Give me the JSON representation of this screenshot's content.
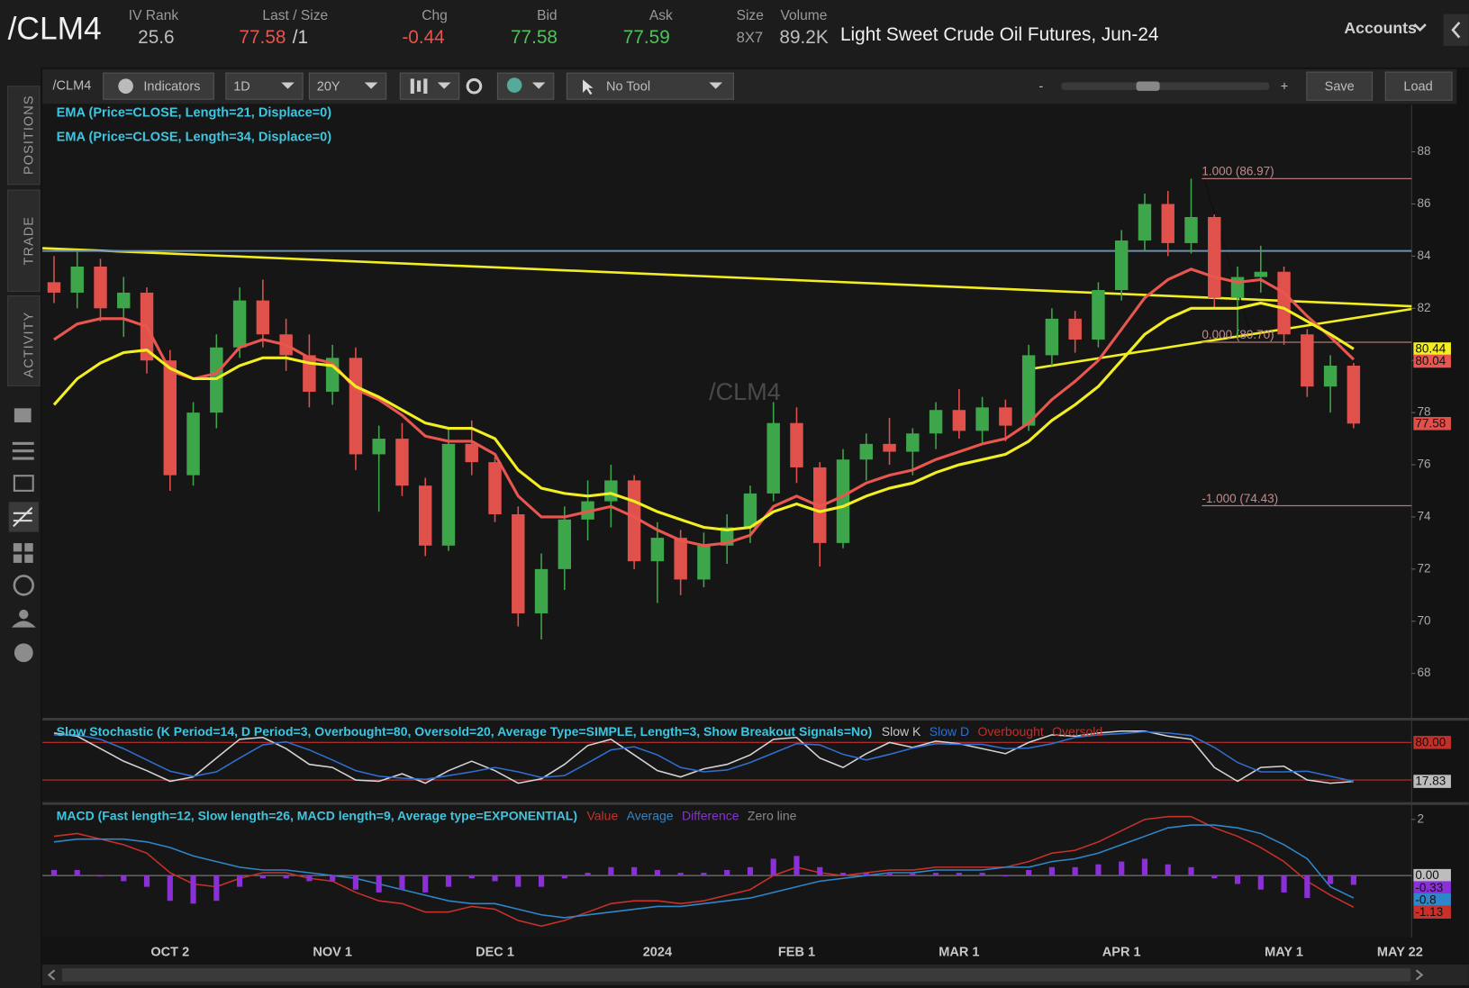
{
  "header": {
    "symbol": "/CLM4",
    "fields": [
      {
        "label": "IV Rank",
        "value": "25.6"
      },
      {
        "label": "Last / Size",
        "value": "77.58",
        "size": "/1"
      },
      {
        "label": "Chg",
        "value": "-0.44"
      },
      {
        "label": "Bid",
        "value": "77.58"
      },
      {
        "label": "Ask",
        "value": "77.59"
      },
      {
        "label": "Size",
        "value": "8X7"
      },
      {
        "label": "Volume",
        "value": "89.2K"
      }
    ],
    "description": "Light Sweet Crude Oil Futures, Jun-24",
    "accounts": "Accounts"
  },
  "toolbar": {
    "symbol": "/CLM4",
    "indicators": "Indicators",
    "period": "1D",
    "range": "20Y",
    "tool": "No Tool",
    "zoom_out": "-",
    "zoom_in": "+",
    "save": "Save",
    "load": "Load"
  },
  "sidebar": {
    "tabs": [
      "POSITIONS",
      "TRADE",
      "ACTIVITY"
    ]
  },
  "chart_data": [
    {
      "type": "candlestick",
      "watermark": "/CLM4",
      "categories": [
        null,
        null,
        null,
        null,
        null,
        "OCT 2",
        null,
        null,
        null,
        null,
        null,
        null,
        "NOV 1",
        null,
        null,
        null,
        null,
        null,
        null,
        "DEC 1",
        null,
        null,
        null,
        null,
        null,
        null,
        "2024",
        null,
        null,
        null,
        null,
        null,
        "FEB 1",
        null,
        null,
        null,
        null,
        null,
        null,
        "MAR 1",
        null,
        null,
        null,
        null,
        null,
        null,
        "APR 1",
        null,
        null,
        null,
        null,
        null,
        null,
        "MAY 1",
        null,
        null,
        null,
        null,
        "MAY 22"
      ],
      "open": [
        83.0,
        82.6,
        83.6,
        82.0,
        82.6,
        80.0,
        75.6,
        78.0,
        80.5,
        82.3,
        81.0,
        80.2,
        78.8,
        80.1,
        76.4,
        77.0,
        75.2,
        72.9,
        76.8,
        76.1,
        74.1,
        70.3,
        72.0,
        73.9,
        74.6,
        75.4,
        72.3,
        73.2,
        71.6,
        72.9,
        73.6,
        74.9,
        77.6,
        75.9,
        73.0,
        76.2,
        76.8,
        76.5,
        77.2,
        78.1,
        77.3,
        78.2,
        77.5,
        80.2,
        81.6,
        80.8,
        82.7,
        84.6,
        86.0,
        84.5,
        85.5,
        82.4,
        83.2,
        83.4,
        81.0,
        79.0,
        79.8,
        null,
        null
      ],
      "high": [
        84.0,
        84.2,
        83.9,
        83.2,
        82.8,
        80.4,
        78.4,
        81.0,
        82.8,
        83.1,
        81.6,
        81.0,
        80.6,
        80.5,
        77.5,
        77.6,
        75.5,
        77.4,
        77.7,
        76.3,
        74.4,
        72.6,
        74.4,
        75.4,
        76.0,
        75.6,
        73.8,
        73.5,
        73.4,
        74.1,
        75.2,
        78.4,
        78.2,
        76.1,
        76.6,
        77.2,
        77.8,
        77.4,
        78.4,
        78.9,
        78.6,
        78.5,
        80.6,
        82.0,
        81.9,
        83.0,
        85.0,
        86.4,
        86.5,
        86.97,
        85.6,
        83.6,
        84.4,
        83.6,
        81.2,
        80.2,
        79.9,
        null,
        null
      ],
      "low": [
        82.2,
        82.0,
        81.5,
        80.9,
        79.5,
        75.0,
        75.2,
        77.4,
        80.1,
        80.5,
        79.6,
        78.2,
        78.3,
        75.8,
        74.2,
        74.8,
        72.5,
        72.7,
        75.6,
        73.8,
        69.8,
        69.3,
        71.2,
        73.1,
        73.6,
        72.0,
        70.7,
        71.0,
        71.3,
        72.2,
        73.0,
        74.6,
        75.3,
        72.1,
        72.8,
        75.4,
        76.0,
        75.6,
        76.6,
        77.0,
        76.8,
        76.9,
        77.3,
        79.8,
        80.3,
        80.5,
        82.3,
        84.2,
        84.0,
        84.1,
        82.0,
        80.9,
        82.6,
        80.6,
        78.6,
        78.0,
        77.4,
        null,
        null
      ],
      "close": [
        82.6,
        83.6,
        82.0,
        82.6,
        80.0,
        75.6,
        78.0,
        80.5,
        82.3,
        81.0,
        80.2,
        78.8,
        80.1,
        76.4,
        77.0,
        75.2,
        72.9,
        76.8,
        76.1,
        74.1,
        70.3,
        72.0,
        73.9,
        74.6,
        75.4,
        72.3,
        73.2,
        71.6,
        72.9,
        73.6,
        74.9,
        77.6,
        75.9,
        73.0,
        76.2,
        76.8,
        76.5,
        77.2,
        78.1,
        77.3,
        78.2,
        77.5,
        80.2,
        81.6,
        80.8,
        82.7,
        84.6,
        86.0,
        84.5,
        85.5,
        82.4,
        83.2,
        83.4,
        81.0,
        79.0,
        79.8,
        77.58,
        null,
        null
      ],
      "up_color": "#3da64a",
      "down_color": "#e0514b",
      "series": [
        {
          "name": "EMA (Price=CLOSE, Length=21, Displace=0)",
          "color": "#e8564f",
          "show_last": true,
          "values": [
            80.8,
            81.4,
            81.6,
            81.6,
            81.3,
            79.6,
            79.3,
            79.5,
            80.5,
            80.8,
            80.6,
            80.1,
            79.9,
            78.9,
            78.5,
            77.9,
            77.1,
            76.9,
            76.9,
            76.4,
            74.8,
            74.0,
            74.0,
            74.2,
            74.4,
            74.0,
            73.5,
            73.1,
            72.9,
            73.0,
            73.3,
            74.4,
            74.8,
            74.4,
            74.8,
            75.3,
            75.6,
            75.8,
            76.2,
            76.5,
            76.8,
            77.0,
            77.6,
            78.5,
            79.2,
            80.0,
            81.2,
            82.4,
            83.1,
            83.5,
            83.2,
            83.0,
            83.1,
            82.6,
            81.7,
            80.9,
            80.04,
            null,
            null
          ]
        },
        {
          "name": "EMA (Price=CLOSE, Length=34, Displace=0)",
          "color": "#f2ee22",
          "show_last": true,
          "values": [
            78.3,
            79.3,
            79.9,
            80.3,
            80.4,
            79.7,
            79.3,
            79.3,
            79.8,
            80.1,
            80.1,
            79.9,
            79.8,
            79.0,
            78.6,
            78.1,
            77.6,
            77.4,
            77.4,
            77.0,
            75.8,
            75.1,
            74.9,
            74.8,
            74.9,
            74.6,
            74.2,
            73.9,
            73.6,
            73.5,
            73.6,
            74.2,
            74.5,
            74.2,
            74.4,
            74.8,
            75.1,
            75.3,
            75.7,
            76.0,
            76.2,
            76.4,
            76.9,
            77.7,
            78.3,
            79.0,
            80.0,
            81.0,
            81.6,
            82.0,
            82.0,
            82.0,
            82.2,
            82.0,
            81.5,
            81.0,
            80.44,
            null,
            null
          ]
        }
      ],
      "ylim": [
        66.35,
        89.8
      ],
      "yticks": [
        68,
        70,
        72,
        74,
        76,
        78,
        80,
        82,
        84,
        86,
        88
      ],
      "fib_levels": [
        {
          "value": 86.97,
          "label": "1.000 (86.97)"
        },
        {
          "value": 80.7,
          "label": "0.000 (80.70)"
        },
        {
          "value": 74.43,
          "label": "-1.000 (74.43)"
        }
      ],
      "hlines": [
        {
          "value": 84.2,
          "color": "#6f8faa"
        }
      ]
    },
    {
      "type": "line",
      "title": "Slow Stochastic (K Period=14, D Period=3, Overbought=80, Oversold=20, Average Type=SIMPLE, Length=3, Show Breakout Signals=No)",
      "series": [
        {
          "name": "Slow K",
          "color": "#d4d4d4",
          "show_last": true,
          "values": [
            95,
            90,
            70,
            50,
            35,
            18,
            25,
            55,
            85,
            88,
            70,
            45,
            40,
            20,
            18,
            30,
            15,
            35,
            50,
            35,
            15,
            22,
            45,
            75,
            85,
            60,
            35,
            25,
            38,
            45,
            60,
            85,
            88,
            55,
            40,
            62,
            80,
            72,
            82,
            78,
            70,
            62,
            80,
            92,
            90,
            95,
            98,
            98,
            90,
            85,
            40,
            18,
            40,
            42,
            20,
            15,
            17.83,
            null,
            null
          ]
        },
        {
          "name": "Slow D",
          "color": "#2f6fd0",
          "show_last": false,
          "values": [
            92,
            92,
            85,
            70,
            52,
            34,
            26,
            33,
            55,
            76,
            81,
            68,
            52,
            35,
            26,
            23,
            21,
            27,
            33,
            40,
            33,
            24,
            27,
            47,
            68,
            73,
            60,
            40,
            33,
            36,
            48,
            63,
            78,
            76,
            61,
            52,
            61,
            71,
            78,
            77,
            77,
            70,
            71,
            78,
            88,
            92,
            94,
            97,
            95,
            91,
            72,
            48,
            33,
            33,
            34,
            26,
            18,
            null,
            null
          ]
        }
      ],
      "levels": [
        {
          "name": "Overbought",
          "color": "#c0302a",
          "value": {
            "value": 80,
            "label": "80.00"
          }
        },
        {
          "name": "Oversold",
          "color": "#c0302a",
          "value": 20
        }
      ],
      "ylim": [
        -13,
        114
      ]
    },
    {
      "type": "line",
      "title": "MACD (Fast length=12, Slow length=26, MACD length=9, Average type=EXPONENTIAL)",
      "series": [
        {
          "name": "Value",
          "color": "#c8302a",
          "show_last": true,
          "values": [
            1.4,
            1.5,
            1.3,
            1.1,
            0.8,
            0.1,
            -0.3,
            -0.4,
            -0.1,
            0.1,
            0.1,
            -0.1,
            -0.2,
            -0.6,
            -0.9,
            -1.0,
            -1.3,
            -1.3,
            -1.1,
            -1.2,
            -1.6,
            -1.8,
            -1.6,
            -1.3,
            -1.0,
            -0.9,
            -0.9,
            -1.0,
            -0.9,
            -0.7,
            -0.5,
            0.0,
            0.3,
            0.1,
            0.0,
            0.1,
            0.2,
            0.2,
            0.3,
            0.3,
            0.3,
            0.3,
            0.5,
            0.8,
            0.9,
            1.2,
            1.6,
            2.0,
            2.1,
            2.1,
            1.7,
            1.4,
            1.0,
            0.5,
            -0.2,
            -0.7,
            -1.13,
            null,
            null
          ]
        },
        {
          "name": "Average",
          "color": "#2f86c9",
          "show_last": true,
          "values": [
            1.2,
            1.3,
            1.3,
            1.3,
            1.2,
            1.0,
            0.7,
            0.5,
            0.3,
            0.2,
            0.2,
            0.1,
            0.0,
            -0.1,
            -0.3,
            -0.5,
            -0.7,
            -0.9,
            -1.0,
            -1.0,
            -1.2,
            -1.4,
            -1.5,
            -1.4,
            -1.3,
            -1.2,
            -1.1,
            -1.1,
            -1.0,
            -0.9,
            -0.8,
            -0.6,
            -0.4,
            -0.2,
            -0.1,
            0.0,
            0.1,
            0.1,
            0.2,
            0.2,
            0.2,
            0.3,
            0.3,
            0.5,
            0.6,
            0.8,
            1.1,
            1.4,
            1.7,
            1.8,
            1.8,
            1.7,
            1.5,
            1.1,
            0.6,
            -0.4,
            -0.8,
            null,
            null
          ]
        },
        {
          "name": "Difference",
          "type": "bar",
          "color": "#8b2fd6",
          "show_last": true,
          "values": [
            0.2,
            0.2,
            0.0,
            -0.2,
            -0.4,
            -0.9,
            -1.0,
            -0.9,
            -0.4,
            -0.1,
            -0.1,
            -0.2,
            -0.2,
            -0.5,
            -0.6,
            -0.5,
            -0.6,
            -0.4,
            -0.1,
            -0.2,
            -0.4,
            -0.4,
            -0.1,
            0.1,
            0.3,
            0.3,
            0.2,
            0.1,
            0.1,
            0.2,
            0.3,
            0.6,
            0.7,
            0.3,
            0.1,
            0.1,
            0.1,
            0.1,
            0.1,
            0.1,
            0.1,
            0.0,
            0.2,
            0.3,
            0.3,
            0.4,
            0.5,
            0.6,
            0.4,
            0.3,
            -0.1,
            -0.3,
            -0.5,
            -0.6,
            -0.8,
            -0.3,
            -0.33,
            null,
            null
          ]
        }
      ],
      "levels": [
        {
          "name": "Zero line",
          "color": "#8a8a8a",
          "value": {
            "value": 0,
            "label": "0.00"
          }
        }
      ],
      "ylim": [
        -2.17,
        2.5
      ],
      "yticks": [
        2
      ]
    }
  ]
}
